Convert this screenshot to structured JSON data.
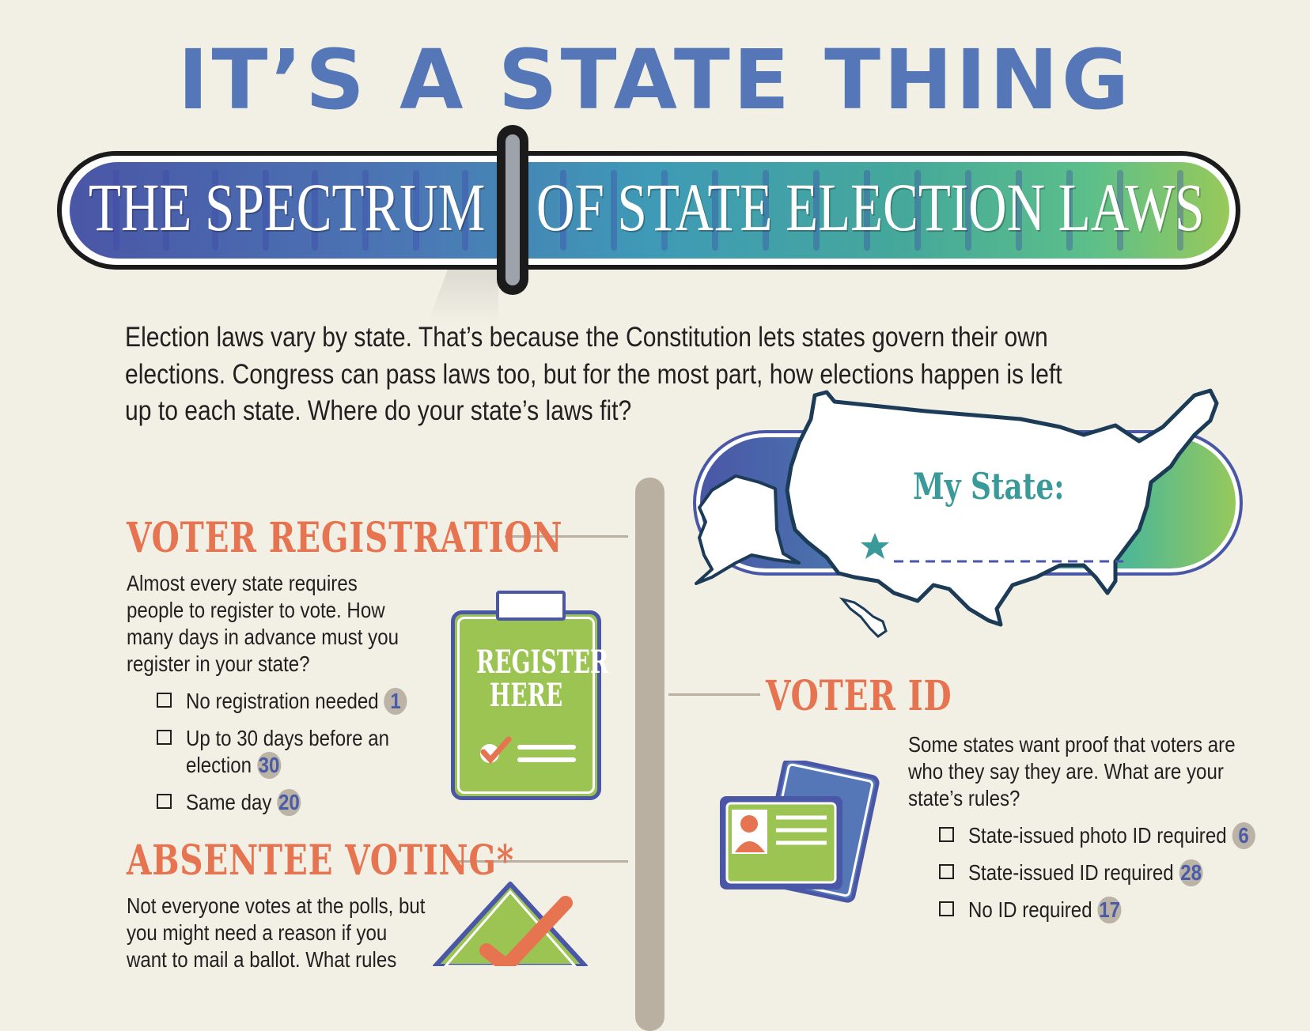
{
  "title": "IT’S A STATE THING",
  "banner": {
    "left_text": "THE SPECTRUM",
    "right_text": "OF STATE ELECTION LAWS"
  },
  "intro": [
    "Election laws vary by state. That’s because the Constitution lets states govern their own",
    "elections. Congress can pass laws too, but for the most part, how elections happen is left",
    "up to each state. Where do your state’s laws fit?"
  ],
  "my_state": {
    "label": "My State:",
    "value": ""
  },
  "voter_registration": {
    "heading": "VOTER REGISTRATION",
    "body": [
      "Almost every state requires",
      "people to register to vote. How",
      "many days in advance must you",
      "register in your state?"
    ],
    "options": [
      {
        "label": "No registration needed",
        "count": "1"
      },
      {
        "label_lines": [
          "Up to 30 days before an",
          "election"
        ],
        "count": "30"
      },
      {
        "label": "Same day",
        "count": "20"
      }
    ],
    "clipboard_text": [
      "REGISTER",
      "HERE"
    ]
  },
  "voter_id": {
    "heading": "VOTER ID",
    "body": [
      "Some states want proof that voters are",
      "who they say they are. What are your",
      "state’s rules?"
    ],
    "options": [
      {
        "label": "State-issued photo ID required",
        "count": "6"
      },
      {
        "label": "State-issued ID required",
        "count": "28"
      },
      {
        "label": "No ID required",
        "count": "17"
      }
    ]
  },
  "absentee_voting": {
    "heading": "ABSENTEE VOTING*",
    "body": [
      "Not everyone votes at the polls, but",
      "you might need a reason if you",
      "want to mail a ballot. What rules"
    ]
  },
  "colors": {
    "background": "#f2efe5",
    "title_blue": "#5577b8",
    "heading_orange": "#e67451",
    "teal": "#3a9a9a",
    "badge_gray": "#bbb3a6",
    "badge_number_blue": "#4a5ca8",
    "icon_green": "#9cc452"
  }
}
